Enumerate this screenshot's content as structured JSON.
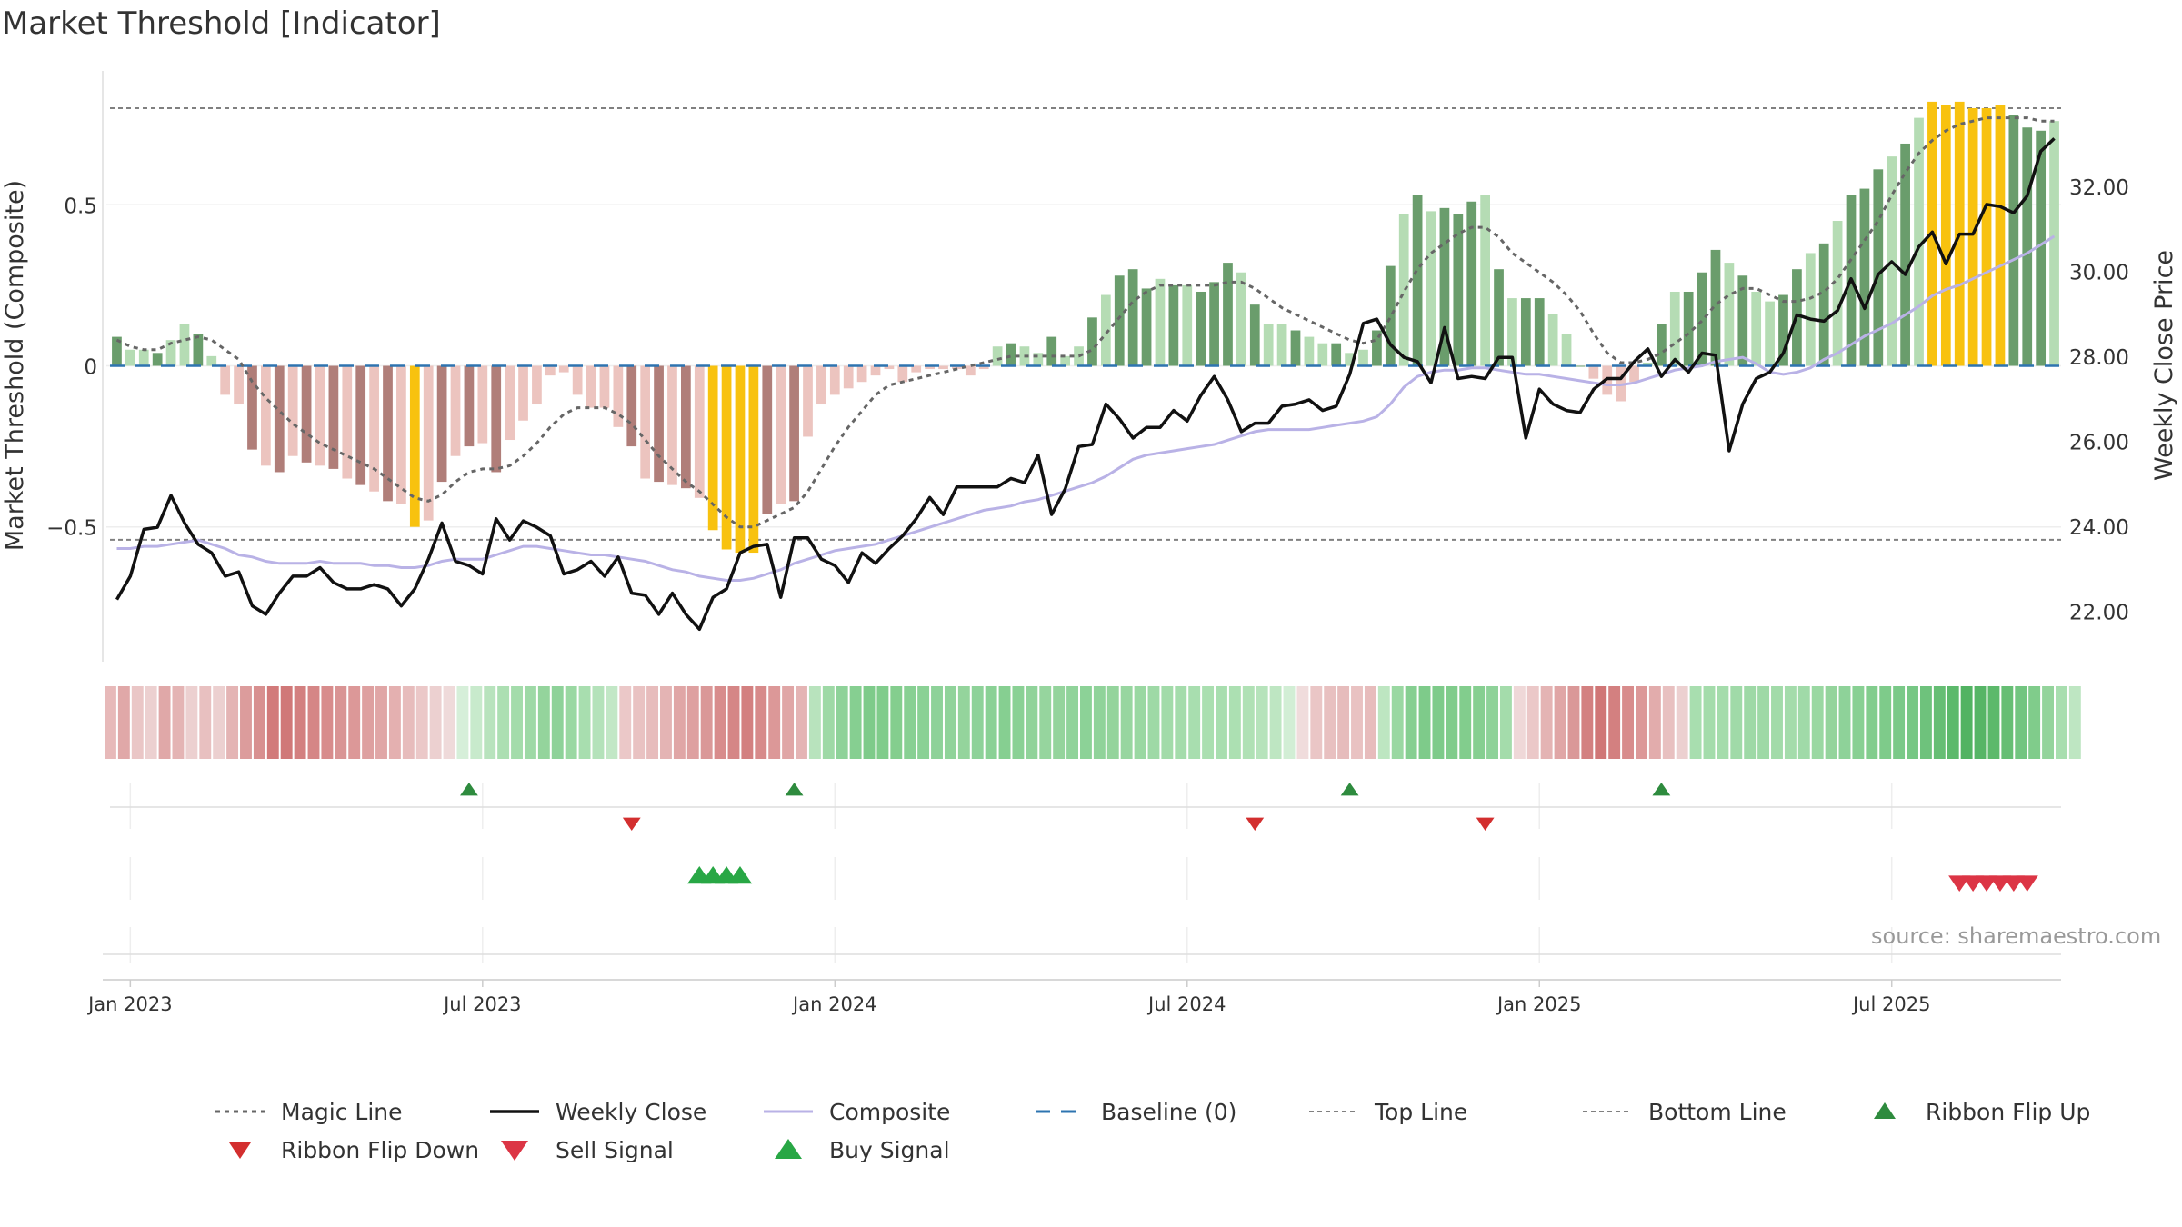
{
  "chart_data": {
    "type": "bar",
    "title": "Market Threshold [Indicator]",
    "ylabel": "Market Threshold (Composite)",
    "y2label": "Weekly Close Price",
    "ylim": [
      -0.91,
      0.91
    ],
    "y2lim": [
      20.9,
      34.7
    ],
    "yticks": [
      {
        "v": 0.5,
        "label": "0.5"
      },
      {
        "v": 0,
        "label": "0"
      },
      {
        "v": -0.5,
        "label": "−0.5"
      }
    ],
    "y2ticks": [
      {
        "v": 22,
        "label": "22.00"
      },
      {
        "v": 24,
        "label": "24.00"
      },
      {
        "v": 26,
        "label": "26.00"
      },
      {
        "v": 28,
        "label": "28.00"
      },
      {
        "v": 30,
        "label": "30.00"
      },
      {
        "v": 32,
        "label": "32.00"
      }
    ],
    "xticks": [
      {
        "i": 1,
        "label": "Jan 2023"
      },
      {
        "i": 27,
        "label": "Jul 2023"
      },
      {
        "i": 53,
        "label": "Jan 2024"
      },
      {
        "i": 79,
        "label": "Jul 2024"
      },
      {
        "i": 105,
        "label": "Jan 2025"
      },
      {
        "i": 131,
        "label": "Jul 2025"
      }
    ],
    "top_line": 0.8,
    "bottom_line": -0.54,
    "baseline": 0,
    "weeks": 144,
    "composite_bars": [
      0.09,
      0.05,
      0.05,
      0.04,
      0.08,
      0.13,
      0.1,
      0.03,
      -0.09,
      -0.12,
      -0.26,
      -0.31,
      -0.33,
      -0.28,
      -0.3,
      -0.31,
      -0.32,
      -0.35,
      -0.37,
      -0.39,
      -0.42,
      -0.43,
      -0.5,
      -0.48,
      -0.36,
      -0.28,
      -0.25,
      -0.24,
      -0.33,
      -0.23,
      -0.17,
      -0.12,
      -0.03,
      -0.02,
      -0.09,
      -0.13,
      -0.13,
      -0.19,
      -0.25,
      -0.35,
      -0.36,
      -0.37,
      -0.38,
      -0.41,
      -0.51,
      -0.57,
      -0.58,
      -0.58,
      -0.46,
      -0.43,
      -0.42,
      -0.22,
      -0.12,
      -0.09,
      -0.07,
      -0.05,
      -0.03,
      -0.01,
      -0.05,
      -0.02,
      -0.01,
      -0.01,
      -0.01,
      -0.03,
      -0.01,
      0.06,
      0.07,
      0.06,
      0.04,
      0.09,
      0.03,
      0.06,
      0.15,
      0.22,
      0.28,
      0.3,
      0.24,
      0.27,
      0.25,
      0.25,
      0.23,
      0.26,
      0.32,
      0.29,
      0.19,
      0.13,
      0.13,
      0.11,
      0.09,
      0.07,
      0.07,
      0.04,
      0.05,
      0.11,
      0.31,
      0.47,
      0.53,
      0.48,
      0.49,
      0.47,
      0.51,
      0.53,
      0.3,
      0.21,
      0.21,
      0.21,
      0.16,
      0.1,
      0.0,
      -0.04,
      -0.09,
      -0.11,
      -0.05,
      0.01,
      0.13,
      0.23,
      0.23,
      0.29,
      0.36,
      0.32,
      0.28,
      0.23,
      0.2,
      0.22,
      0.3,
      0.35,
      0.38,
      0.45,
      0.53,
      0.55,
      0.61,
      0.65,
      0.69,
      0.77,
      0.82,
      0.81,
      0.82,
      0.8,
      0.8,
      0.81,
      0.78,
      0.74,
      0.73,
      0.76
    ],
    "magic_line": [
      0.08,
      0.06,
      0.05,
      0.05,
      0.07,
      0.08,
      0.09,
      0.08,
      0.05,
      0.02,
      -0.05,
      -0.1,
      -0.14,
      -0.18,
      -0.21,
      -0.24,
      -0.26,
      -0.28,
      -0.3,
      -0.32,
      -0.35,
      -0.38,
      -0.41,
      -0.42,
      -0.4,
      -0.36,
      -0.33,
      -0.32,
      -0.32,
      -0.31,
      -0.28,
      -0.24,
      -0.19,
      -0.15,
      -0.13,
      -0.13,
      -0.13,
      -0.15,
      -0.18,
      -0.23,
      -0.28,
      -0.32,
      -0.36,
      -0.39,
      -0.43,
      -0.47,
      -0.5,
      -0.5,
      -0.48,
      -0.46,
      -0.44,
      -0.39,
      -0.32,
      -0.25,
      -0.19,
      -0.14,
      -0.09,
      -0.06,
      -0.05,
      -0.04,
      -0.03,
      -0.02,
      -0.01,
      0.0,
      0.01,
      0.02,
      0.03,
      0.03,
      0.03,
      0.03,
      0.03,
      0.03,
      0.05,
      0.1,
      0.15,
      0.2,
      0.23,
      0.25,
      0.25,
      0.25,
      0.25,
      0.25,
      0.26,
      0.26,
      0.24,
      0.21,
      0.18,
      0.16,
      0.14,
      0.12,
      0.1,
      0.08,
      0.07,
      0.08,
      0.15,
      0.23,
      0.3,
      0.35,
      0.38,
      0.41,
      0.43,
      0.43,
      0.4,
      0.35,
      0.32,
      0.29,
      0.26,
      0.22,
      0.17,
      0.1,
      0.04,
      0.01,
      0.01,
      0.02,
      0.04,
      0.07,
      0.1,
      0.14,
      0.19,
      0.22,
      0.24,
      0.24,
      0.22,
      0.2,
      0.2,
      0.21,
      0.23,
      0.27,
      0.33,
      0.39,
      0.45,
      0.53,
      0.6,
      0.66,
      0.7,
      0.73,
      0.75,
      0.76,
      0.77,
      0.77,
      0.77,
      0.77,
      0.76,
      0.76
    ],
    "weekly_close": [
      22.3,
      22.85,
      23.95,
      24.0,
      24.75,
      24.1,
      23.6,
      23.4,
      22.85,
      22.95,
      22.15,
      21.95,
      22.45,
      22.85,
      22.85,
      23.05,
      22.7,
      22.55,
      22.55,
      22.65,
      22.55,
      22.15,
      22.55,
      23.25,
      24.1,
      23.2,
      23.1,
      22.9,
      24.2,
      23.7,
      24.15,
      24.0,
      23.8,
      22.9,
      23.0,
      23.2,
      22.85,
      23.3,
      22.45,
      22.4,
      21.95,
      22.45,
      21.95,
      21.6,
      22.35,
      22.55,
      23.4,
      23.55,
      23.6,
      22.35,
      23.75,
      23.75,
      23.25,
      23.1,
      22.7,
      23.4,
      23.15,
      23.5,
      23.8,
      24.2,
      24.7,
      24.3,
      24.95,
      24.95,
      24.95,
      24.95,
      25.15,
      25.05,
      25.7,
      24.3,
      24.9,
      25.9,
      25.95,
      26.9,
      26.55,
      26.1,
      26.35,
      26.35,
      26.75,
      26.5,
      27.1,
      27.55,
      27.0,
      26.25,
      26.45,
      26.45,
      26.85,
      26.9,
      27.0,
      26.75,
      26.85,
      27.6,
      28.8,
      28.9,
      28.3,
      28.0,
      27.9,
      27.4,
      28.7,
      27.5,
      27.55,
      27.5,
      28.0,
      28.0,
      26.1,
      27.25,
      26.9,
      26.75,
      26.7,
      27.25,
      27.5,
      27.5,
      27.9,
      28.2,
      27.55,
      27.95,
      27.65,
      28.1,
      28.05,
      25.8,
      26.9,
      27.5,
      27.65,
      28.1,
      29.0,
      28.9,
      28.85,
      29.1,
      29.85,
      29.15,
      29.95,
      30.25,
      29.95,
      30.6,
      30.95,
      30.2,
      30.9,
      30.9,
      31.6,
      31.55,
      31.4,
      31.8,
      32.85,
      33.15
    ],
    "composite_line": [
      23.5,
      23.5,
      23.55,
      23.55,
      23.6,
      23.65,
      23.7,
      23.6,
      23.5,
      23.35,
      23.3,
      23.2,
      23.15,
      23.15,
      23.15,
      23.2,
      23.15,
      23.15,
      23.15,
      23.1,
      23.1,
      23.05,
      23.05,
      23.1,
      23.2,
      23.25,
      23.25,
      23.25,
      23.35,
      23.45,
      23.55,
      23.55,
      23.5,
      23.45,
      23.4,
      23.35,
      23.35,
      23.3,
      23.25,
      23.2,
      23.1,
      23.0,
      22.95,
      22.85,
      22.8,
      22.75,
      22.75,
      22.8,
      22.9,
      23.0,
      23.15,
      23.25,
      23.35,
      23.45,
      23.5,
      23.55,
      23.6,
      23.7,
      23.8,
      23.9,
      24.0,
      24.1,
      24.2,
      24.3,
      24.4,
      24.45,
      24.5,
      24.6,
      24.65,
      24.75,
      24.85,
      24.95,
      25.05,
      25.2,
      25.4,
      25.6,
      25.7,
      25.75,
      25.8,
      25.85,
      25.9,
      25.95,
      26.05,
      26.15,
      26.25,
      26.3,
      26.3,
      26.3,
      26.3,
      26.35,
      26.4,
      26.45,
      26.5,
      26.6,
      26.9,
      27.3,
      27.55,
      27.65,
      27.7,
      27.7,
      27.75,
      27.75,
      27.7,
      27.65,
      27.6,
      27.6,
      27.55,
      27.5,
      27.45,
      27.4,
      27.35,
      27.35,
      27.4,
      27.5,
      27.6,
      27.7,
      27.75,
      27.8,
      27.9,
      27.95,
      28.0,
      27.85,
      27.65,
      27.6,
      27.65,
      27.75,
      27.95,
      28.1,
      28.3,
      28.5,
      28.65,
      28.8,
      29.0,
      29.2,
      29.45,
      29.6,
      29.7,
      29.85,
      30.0,
      30.15,
      30.3,
      30.45,
      30.65,
      30.85
    ],
    "ribbon_colors": [
      "#e7b9b9",
      "#e0a8a8",
      "#eac6c6",
      "#ecd0d0",
      "#e0a8a8",
      "#e4b4b4",
      "#ecd0d0",
      "#e8c0c0",
      "#ecd0d0",
      "#e4b4b4",
      "#dc9c9c",
      "#d89090",
      "#d27a7a",
      "#d07878",
      "#d38080",
      "#d58686",
      "#d88c8c",
      "#d99494",
      "#dc9898",
      "#dea0a0",
      "#e0a6a6",
      "#e4b0b0",
      "#e7bcbc",
      "#ebc8c8",
      "#ecd0d0",
      "#efdada",
      "#d6efd9",
      "#c8eacc",
      "#b8e3bd",
      "#acdfb2",
      "#a4dcab",
      "#9ed9a6",
      "#94d49c",
      "#8ed299",
      "#9ad8a2",
      "#a8deaf",
      "#b4e2ba",
      "#c2e7c6",
      "#ebc8c8",
      "#e9c2c2",
      "#e7bcbc",
      "#e4b4b4",
      "#e0a6a6",
      "#dea0a0",
      "#da9898",
      "#d88c8c",
      "#d58686",
      "#d38080",
      "#d78a8a",
      "#dc9898",
      "#e0a6a6",
      "#e4b4b4",
      "#b8e3bd",
      "#9ed9a6",
      "#8ed299",
      "#86cf91",
      "#7ecb8a",
      "#80cc8b",
      "#84ce8e",
      "#88d093",
      "#8ad195",
      "#8ed299",
      "#90d39a",
      "#94d49c",
      "#8ed299",
      "#8ad195",
      "#86cf91",
      "#8ad195",
      "#90d39a",
      "#96d59e",
      "#94d49c",
      "#90d39a",
      "#8cd297",
      "#90d39a",
      "#94d49c",
      "#98d6a0",
      "#9ad8a2",
      "#9ed9a6",
      "#a2dba9",
      "#a4dcab",
      "#a8deaf",
      "#aadfb0",
      "#a8deaf",
      "#ace0b2",
      "#b0e1b5",
      "#b6e3bb",
      "#bee6c2",
      "#d2eed5",
      "#f0dcdc",
      "#eac6c6",
      "#e8c0c0",
      "#e6bcbc",
      "#e9c2c2",
      "#e7bcbc",
      "#bde6c1",
      "#9ad8a2",
      "#86cf91",
      "#7ecb8a",
      "#7ecb8a",
      "#80cc8b",
      "#82cd8d",
      "#86cf91",
      "#8ed299",
      "#a4dcab",
      "#efd8d8",
      "#ebc8c8",
      "#e4b4b4",
      "#e0a6a6",
      "#da9898",
      "#d38080",
      "#d07676",
      "#d38080",
      "#d88c8c",
      "#dc9898",
      "#e2acac",
      "#e8c0c0",
      "#ecd0d0",
      "#a8deaf",
      "#a4dcab",
      "#a4dcab",
      "#a0daa8",
      "#9ed9a6",
      "#9ed9a6",
      "#a2dba9",
      "#a4dcab",
      "#a0daa8",
      "#9ad8a2",
      "#94d49c",
      "#8ed299",
      "#88d093",
      "#82cd8d",
      "#7ecb8a",
      "#7ac988",
      "#76c784",
      "#6ec27c",
      "#66be74",
      "#5cb96b",
      "#52b362",
      "#56b566",
      "#5cb96b",
      "#66be74",
      "#72c580",
      "#80cc8b",
      "#94d49c",
      "#a8deaf",
      "#bee6c2"
    ],
    "ribbon_flip_up": [
      26,
      50,
      91,
      114
    ],
    "ribbon_flip_down": [
      38,
      84,
      101
    ],
    "buy_signal": [
      43,
      44,
      45,
      46
    ],
    "sell_signal": [
      136,
      137,
      138,
      139,
      140,
      141
    ],
    "colors": {
      "bar_pos_strong": "#6a9d6c",
      "bar_pos_weak": "#b5dcb4",
      "bar_neg_strong": "#b07e79",
      "bar_neg_weak": "#ecc4bf",
      "bar_extreme": "#f8c20f",
      "magic_line": "#666666",
      "weekly_close": "#111111",
      "composite_line": "#b9b2e6",
      "baseline": "#2e74b0",
      "threshold_lines": "#808080",
      "ribbon_flip_up": "#2e8b3e",
      "ribbon_flip_down": "#d32f2f",
      "sell_signal": "#dc3545",
      "buy_signal": "#28a745"
    },
    "legend": [
      {
        "key": "magic",
        "label": "Magic Line"
      },
      {
        "key": "close",
        "label": "Weekly Close"
      },
      {
        "key": "composite",
        "label": "Composite"
      },
      {
        "key": "baseline",
        "label": "Baseline (0)"
      },
      {
        "key": "top",
        "label": "Top Line"
      },
      {
        "key": "bottom",
        "label": "Bottom Line"
      },
      {
        "key": "flipup",
        "label": "Ribbon Flip Up"
      },
      {
        "key": "flipdown",
        "label": "Ribbon Flip Down"
      },
      {
        "key": "sell",
        "label": "Sell Signal"
      },
      {
        "key": "buy",
        "label": "Buy Signal"
      }
    ],
    "legend_placement": "bottom",
    "grid": true
  },
  "source_note": "source: sharemaestro.com"
}
